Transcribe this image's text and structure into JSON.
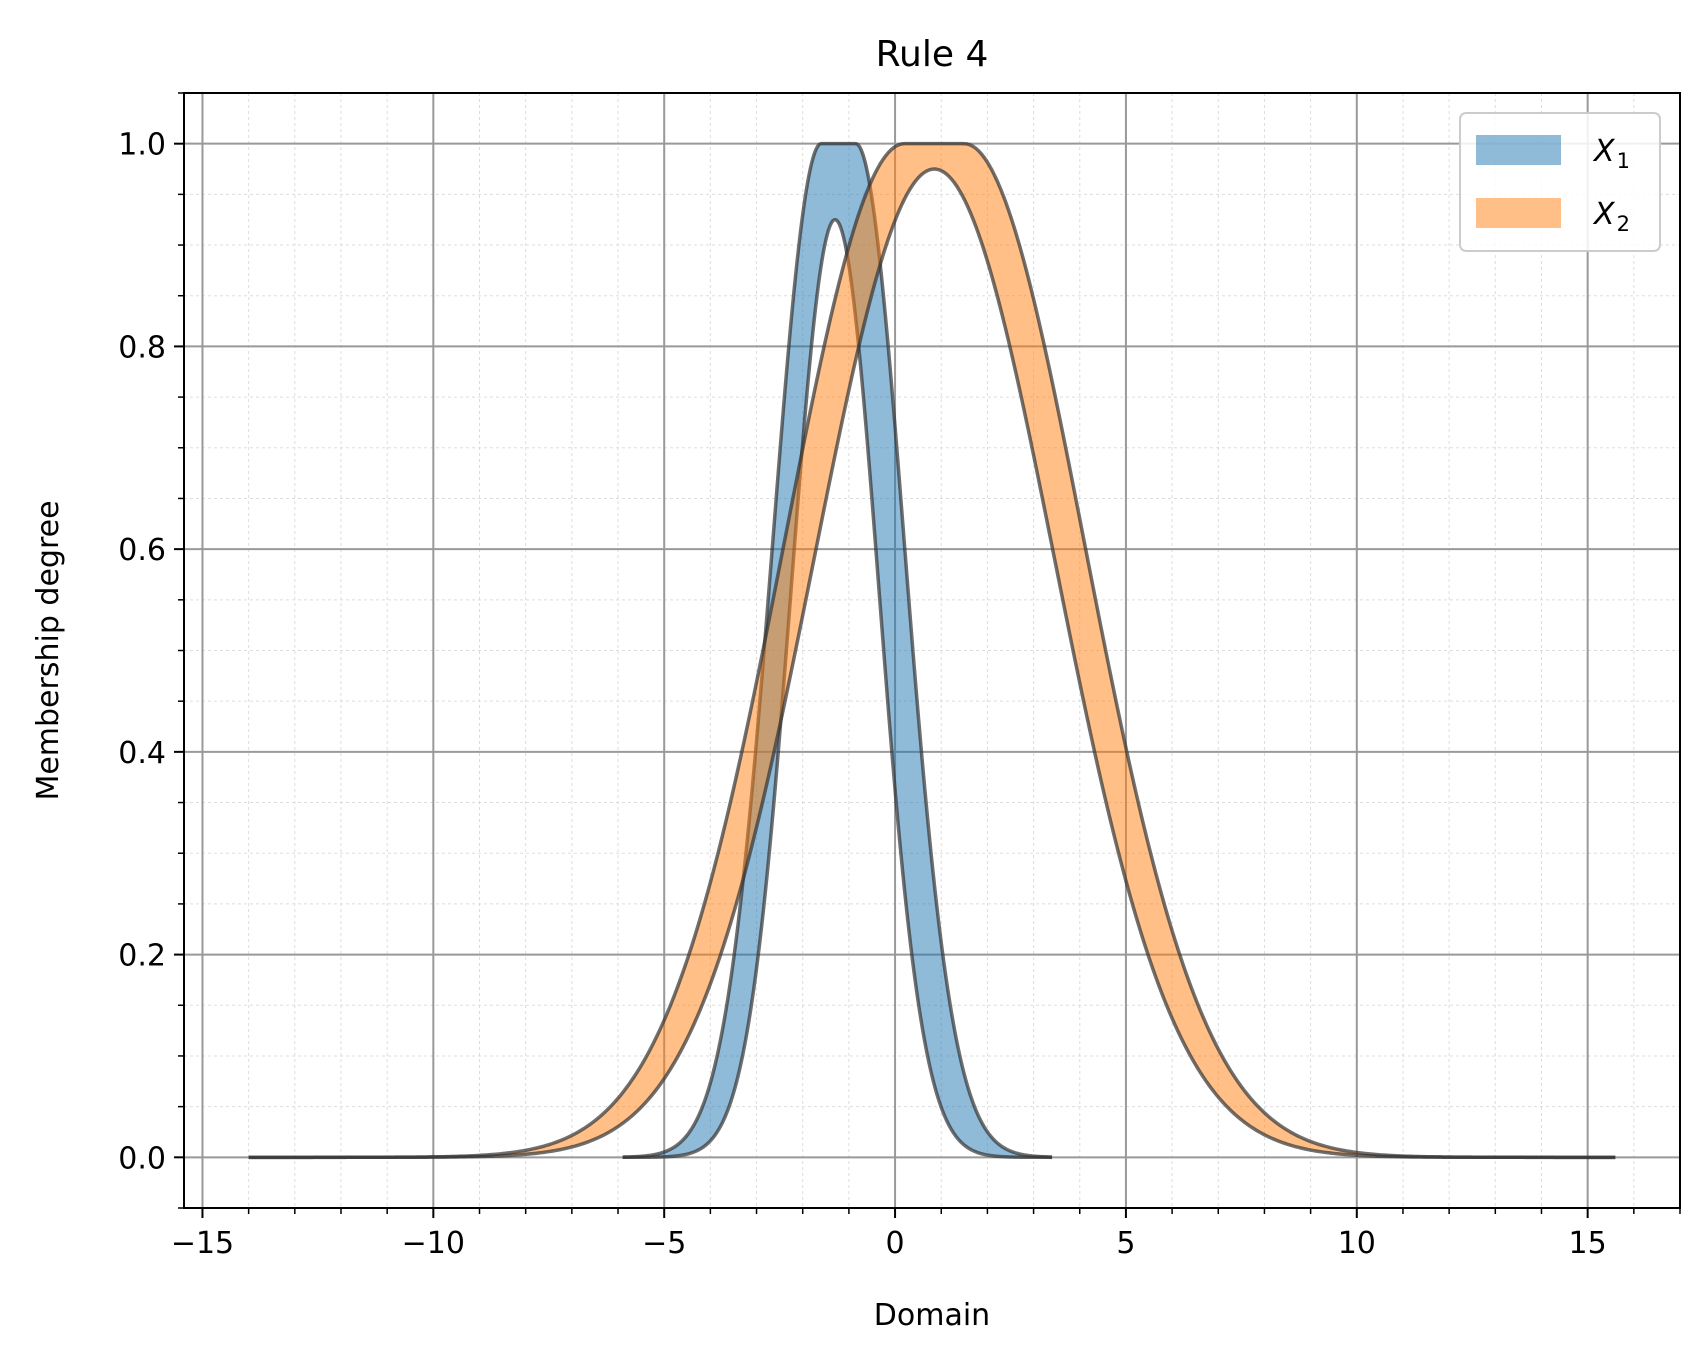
{
  "chart_data": {
    "type": "area",
    "title": "Rule 4",
    "xlabel": "Domain",
    "ylabel": "Membership degree",
    "xlim": [
      -15.4,
      17.0
    ],
    "ylim": [
      -0.05,
      1.05
    ],
    "xticks": [
      -15,
      -10,
      -5,
      0,
      5,
      10,
      15
    ],
    "xtick_labels": [
      "−15",
      "−10",
      "−5",
      "0",
      "5",
      "10",
      "15"
    ],
    "yticks": [
      0.0,
      0.2,
      0.4,
      0.6,
      0.8,
      1.0
    ],
    "ytick_labels": [
      "0.0",
      "0.2",
      "0.4",
      "0.6",
      "0.8",
      "1.0"
    ],
    "grid": true,
    "minor_grid": true,
    "legend_position": "top-right",
    "series": [
      {
        "name": "X",
        "subscript": "1",
        "color": "#1f77b4",
        "fill_opacity": 0.5,
        "domain": [
          -5.9,
          3.4
        ],
        "upper": {
          "center_left": -1.6,
          "center_right": -0.85,
          "sigma": 1.05,
          "height": 1.0
        },
        "lower": {
          "center": -1.3,
          "sigma": 0.95,
          "height": 0.925
        }
      },
      {
        "name": "X",
        "subscript": "2",
        "color": "#ff7f0e",
        "fill_opacity": 0.5,
        "domain": [
          -14.0,
          15.6
        ],
        "upper": {
          "center_left": 0.2,
          "center_right": 1.5,
          "sigma": 2.6,
          "height": 1.0
        },
        "lower": {
          "center": 0.85,
          "sigma": 2.6,
          "height": 0.975
        }
      }
    ]
  },
  "colors": {
    "edge": "#333333",
    "major_grid": "#999999",
    "minor_grid": "#dddddd"
  }
}
